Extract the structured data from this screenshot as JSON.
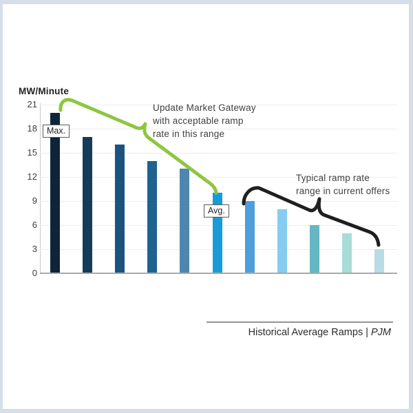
{
  "frame": {
    "border_color": "#d6deea",
    "background": "#ffffff"
  },
  "chart_data": {
    "type": "bar",
    "title": "",
    "ylabel": "MW/Minute",
    "xlabel": "",
    "ylim": [
      0,
      21
    ],
    "yticks": [
      0,
      3,
      6,
      9,
      12,
      15,
      18,
      21
    ],
    "grid": "horizontal light gray lines at each y tick",
    "legend": "none",
    "x_tick_labels": "none",
    "values": [
      20,
      17,
      16,
      14,
      13,
      10,
      9,
      8,
      6,
      5,
      3
    ],
    "bar_colors": [
      "#0e2539",
      "#143c58",
      "#1a547e",
      "#1e628f",
      "#4d87af",
      "#189cd9",
      "#4f9ed9",
      "#85ccf0",
      "#64b7c3",
      "#a9dcd8",
      "#b7dce5"
    ],
    "point_labels": [
      {
        "bar_index": 0,
        "label": "Max."
      },
      {
        "bar_index": 5,
        "label": "Avg."
      }
    ]
  },
  "annotations": {
    "acceptable_range": {
      "text_lines": [
        "Update Market Gateway",
        "with acceptable ramp",
        "rate in this range"
      ],
      "brace_color": "#8dc63f",
      "brace_span_bars": [
        1,
        6
      ]
    },
    "typical_range": {
      "text_lines": [
        "Typical ramp rate",
        "range in current offers"
      ],
      "brace_color": "#1f1f1f",
      "brace_span_bars": [
        7,
        11
      ]
    }
  },
  "footer": {
    "source_label": "Historical Average Ramps |",
    "source_name": "PJM"
  }
}
